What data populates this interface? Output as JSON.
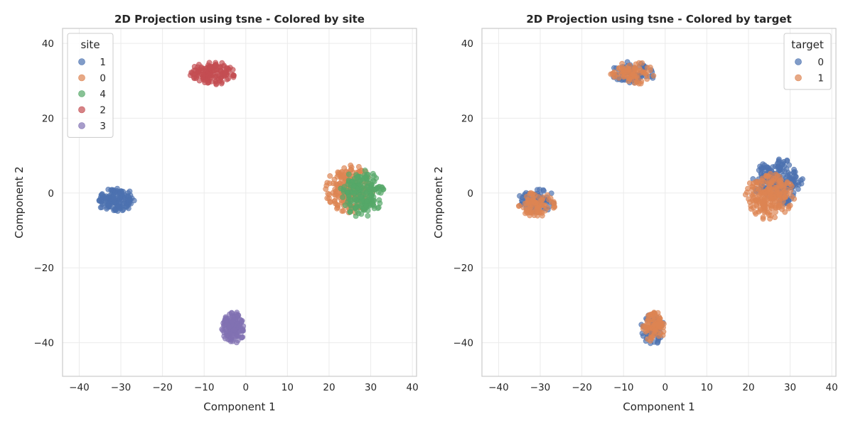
{
  "chart_data": [
    {
      "type": "scatter",
      "title": "2D Projection using tsne - Colored by site",
      "xlabel": "Component 1",
      "ylabel": "Component 2",
      "xlim": [
        -44,
        41
      ],
      "ylim": [
        -49,
        44
      ],
      "xticks": [
        "−40",
        "−30",
        "−20",
        "−10",
        "0",
        "10",
        "20",
        "30",
        "40"
      ],
      "xtick_values": [
        -40,
        -30,
        -20,
        -10,
        0,
        10,
        20,
        30,
        40
      ],
      "yticks": [
        "−40",
        "−20",
        "0",
        "20",
        "40"
      ],
      "ytick_values": [
        -40,
        -20,
        0,
        20,
        40
      ],
      "grid": true,
      "legend": {
        "title": "site",
        "placement": "top-left"
      },
      "series": [
        {
          "name": "1",
          "color": "#4c72b0",
          "center": [
            -31,
            -2
          ],
          "spread": [
            4.2,
            3.0
          ],
          "count": 150
        },
        {
          "name": "0",
          "color": "#dd8452",
          "center": [
            25,
            1
          ],
          "spread": [
            5.5,
            5.8
          ],
          "count": 210
        },
        {
          "name": "4",
          "color": "#55a868",
          "center": [
            28,
            0
          ],
          "spread": [
            4.8,
            6.0
          ],
          "count": 190
        },
        {
          "name": "2",
          "color": "#c44e52",
          "center": [
            -8,
            32
          ],
          "spread": [
            5.0,
            2.8
          ],
          "count": 150
        },
        {
          "name": "3",
          "color": "#8172b3",
          "center": [
            -3,
            -36
          ],
          "spread": [
            2.6,
            4.0
          ],
          "count": 150
        }
      ]
    },
    {
      "type": "scatter",
      "title": "2D Projection using tsne - Colored by target",
      "xlabel": "Component 1",
      "ylabel": "Component 2",
      "xlim": [
        -44,
        41
      ],
      "ylim": [
        -49,
        44
      ],
      "xticks": [
        "−40",
        "−30",
        "−20",
        "−10",
        "0",
        "10",
        "20",
        "30",
        "40"
      ],
      "xtick_values": [
        -40,
        -30,
        -20,
        -10,
        0,
        10,
        20,
        30,
        40
      ],
      "yticks": [
        "−40",
        "−20",
        "0",
        "20",
        "40"
      ],
      "ytick_values": [
        -40,
        -20,
        0,
        20,
        40
      ],
      "grid": true,
      "legend": {
        "title": "target",
        "placement": "top-right"
      },
      "series": [
        {
          "name": "0",
          "color": "#4c72b0",
          "clusters": [
            [
              -31,
              -2,
              4.2,
              3.0,
              75
            ],
            [
              -8,
              32,
              5.0,
              2.8,
              75
            ],
            [
              27,
              3,
              5.5,
              5.8,
              200
            ],
            [
              -3,
              -36,
              2.6,
              4.0,
              75
            ]
          ]
        },
        {
          "name": "1",
          "color": "#dd8452",
          "clusters": [
            [
              -31,
              -3,
              4.2,
              3.0,
              75
            ],
            [
              -8,
              32,
              5.0,
              2.8,
              75
            ],
            [
              25,
              -1,
              5.5,
              5.8,
              200
            ],
            [
              -3,
              -36,
              2.6,
              4.0,
              75
            ]
          ]
        }
      ]
    }
  ]
}
